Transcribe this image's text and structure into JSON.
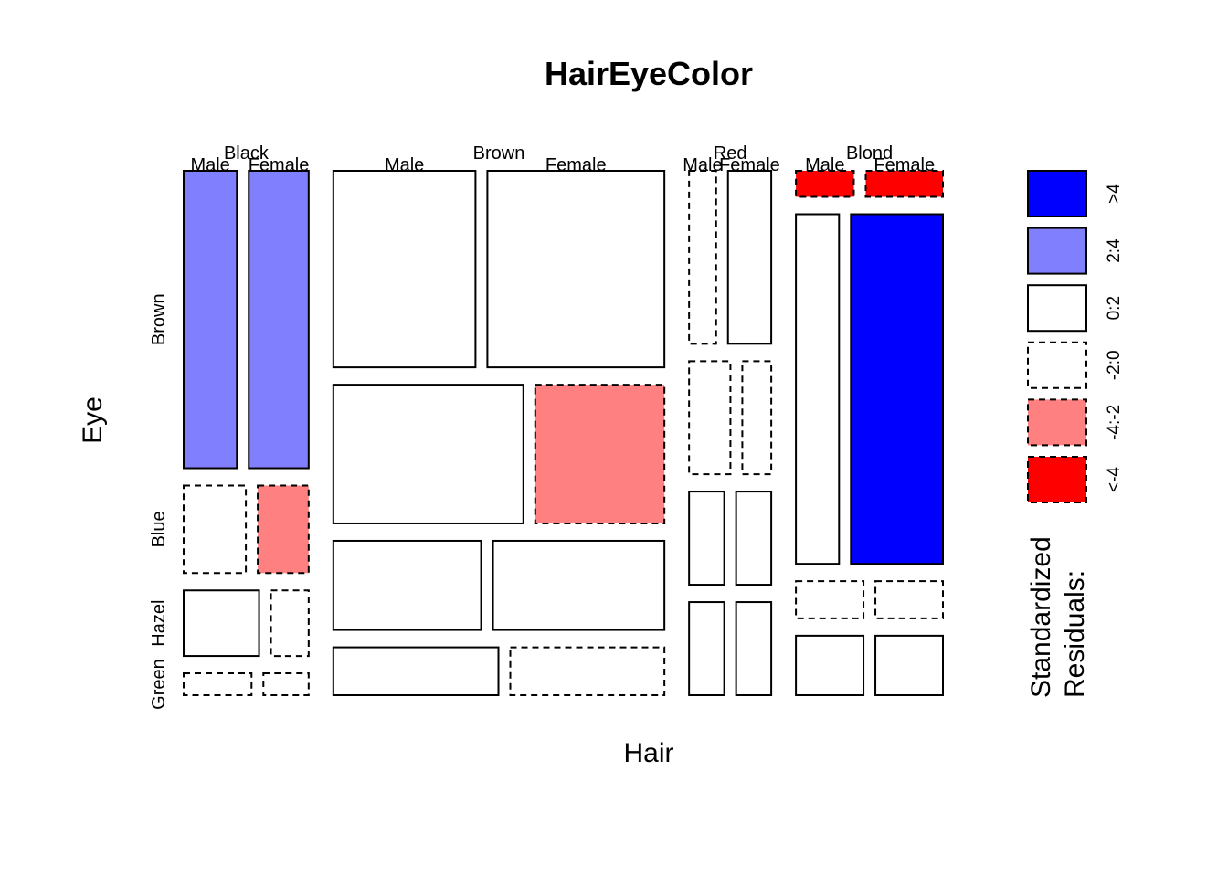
{
  "chart_data": {
    "type": "mosaic",
    "title": "HairEyeColor",
    "xlabel": "Hair",
    "ylabel": "Eye",
    "hair": [
      "Black",
      "Brown",
      "Red",
      "Blond"
    ],
    "eye": [
      "Brown",
      "Blue",
      "Hazel",
      "Green"
    ],
    "sex": [
      "Male",
      "Female"
    ],
    "counts": {
      "Black": {
        "Male": {
          "Brown": 32,
          "Blue": 11,
          "Hazel": 10,
          "Green": 3
        },
        "Female": {
          "Brown": 36,
          "Blue": 9,
          "Hazel": 5,
          "Green": 2
        }
      },
      "Brown": {
        "Male": {
          "Brown": 53,
          "Blue": 50,
          "Hazel": 25,
          "Green": 15
        },
        "Female": {
          "Brown": 66,
          "Blue": 34,
          "Hazel": 29,
          "Green": 14
        }
      },
      "Red": {
        "Male": {
          "Brown": 10,
          "Blue": 10,
          "Hazel": 7,
          "Green": 7
        },
        "Female": {
          "Brown": 16,
          "Blue": 7,
          "Hazel": 7,
          "Green": 7
        }
      },
      "Blond": {
        "Male": {
          "Brown": 3,
          "Blue": 30,
          "Hazel": 5,
          "Green": 8
        },
        "Female": {
          "Brown": 4,
          "Blue": 64,
          "Hazel": 5,
          "Green": 8
        }
      }
    },
    "residual_class": {
      "Black": {
        "Male": {
          "Brown": "2:4",
          "Blue": "-2:0",
          "Hazel": "0:2",
          "Green": "-2:0"
        },
        "Female": {
          "Brown": "2:4",
          "Blue": "-4:-2",
          "Hazel": "-2:0",
          "Green": "-2:0"
        }
      },
      "Brown": {
        "Male": {
          "Brown": "0:2",
          "Blue": "0:2",
          "Hazel": "0:2",
          "Green": "0:2"
        },
        "Female": {
          "Brown": "0:2",
          "Blue": "-4:-2",
          "Hazel": "0:2",
          "Green": "-2:0"
        }
      },
      "Red": {
        "Male": {
          "Brown": "-2:0",
          "Blue": "-2:0",
          "Hazel": "0:2",
          "Green": "0:2"
        },
        "Female": {
          "Brown": "0:2",
          "Blue": "-2:0",
          "Hazel": "0:2",
          "Green": "0:2"
        }
      },
      "Blond": {
        "Male": {
          "Brown": "<-4",
          "Blue": "0:2",
          "Hazel": "-2:0",
          "Green": "0:2"
        },
        "Female": {
          "Brown": "<-4",
          "Blue": ">4",
          "Hazel": "-2:0",
          "Green": "0:2"
        }
      }
    },
    "legend": {
      "title_line1": "Standardized",
      "title_line2": "Residuals:",
      "items": [
        {
          "label": ">4",
          "color": "#0000ff",
          "dashed": false
        },
        {
          "label": "2:4",
          "color": "#8080ff",
          "dashed": false
        },
        {
          "label": "0:2",
          "color": "#ffffff",
          "dashed": false
        },
        {
          "label": "-2:0",
          "color": "#ffffff",
          "dashed": true
        },
        {
          "label": "-4:-2",
          "color": "#ff8080",
          "dashed": true
        },
        {
          "label": "<-4",
          "color": "#ff0000",
          "dashed": true
        }
      ]
    }
  }
}
